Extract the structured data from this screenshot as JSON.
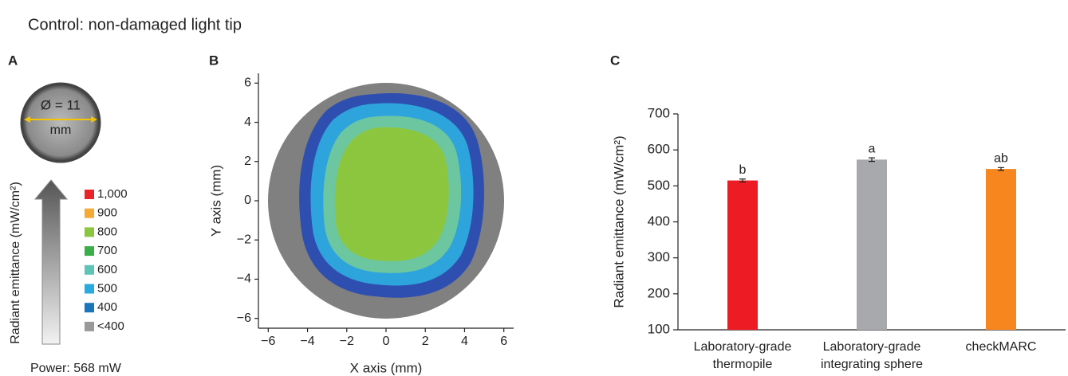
{
  "title": "Control: non-damaged light tip",
  "panel_labels": [
    "A",
    "B",
    "C"
  ],
  "photo": {
    "diameter_label": "Ø = 11",
    "unit_label": "mm",
    "power_label": "Power: 568 mW"
  },
  "legend": {
    "axis_label": "Radiant emittance (mW/cm²)",
    "entries": [
      {
        "label": "1,000",
        "color": "#e8232a"
      },
      {
        "label": "900",
        "color": "#f7a936"
      },
      {
        "label": "800",
        "color": "#8cc63f"
      },
      {
        "label": "700",
        "color": "#3aae49"
      },
      {
        "label": "600",
        "color": "#5ec4b6"
      },
      {
        "label": "500",
        "color": "#29abe2"
      },
      {
        "label": "400",
        "color": "#1b75bc"
      },
      {
        "label": "<400",
        "color": "#999999"
      }
    ]
  },
  "chart_data": [
    {
      "type": "heatmap",
      "x_label": "X axis (mm)",
      "y_label": "Y axis (mm)",
      "xlim": [
        -6.5,
        6.5
      ],
      "ylim": [
        -6.5,
        6.5
      ],
      "xticks": [
        {
          "value": -6,
          "label": "−6"
        },
        {
          "value": -4,
          "label": "−4"
        },
        {
          "value": -2,
          "label": "−2"
        },
        0,
        2,
        4,
        6
      ],
      "yticks": [
        {
          "value": -6,
          "label": "−6"
        },
        {
          "value": -4,
          "label": "−4"
        },
        {
          "value": -2,
          "label": "−2"
        },
        0,
        2,
        4,
        6
      ]
    },
    {
      "type": "bar",
      "y_label": "Radiant emittance (mW/cm²)",
      "categories": [
        [
          "Laboratory-grade",
          "thermopile"
        ],
        [
          "Laboratory-grade",
          "integrating sphere"
        ],
        [
          "checkMARC"
        ]
      ],
      "values": [
        515,
        573,
        547
      ],
      "errors": [
        4,
        5,
        4
      ],
      "annotations": [
        "b",
        "a",
        "ab"
      ],
      "colors": [
        "#ed1c24",
        "#a7a9ac",
        "#f7861f"
      ],
      "ylim": [
        100,
        700
      ],
      "yticks": [
        100,
        200,
        300,
        400,
        500,
        600,
        700
      ]
    }
  ]
}
